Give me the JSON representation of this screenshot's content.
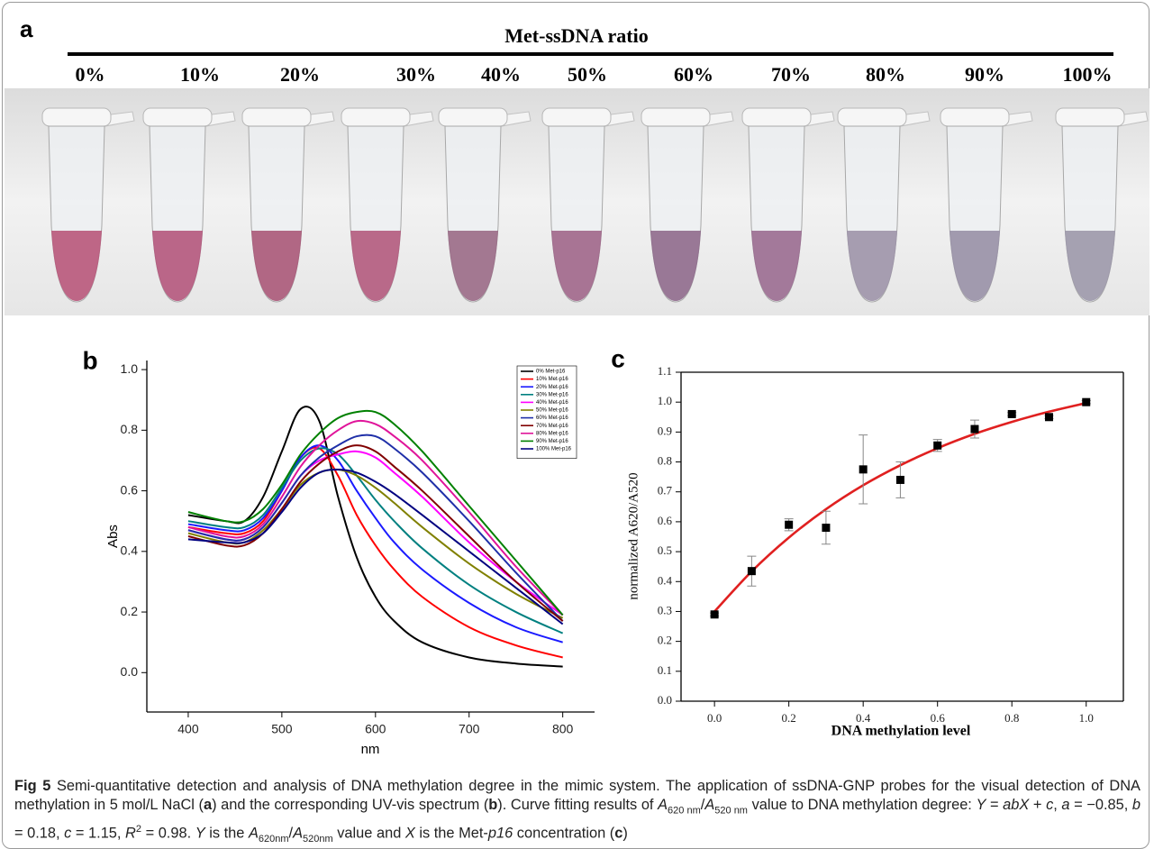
{
  "panel_a": {
    "label": "a",
    "title": "Met-ssDNA ratio",
    "ratios": [
      "0%",
      "10%",
      "20%",
      "30%",
      "40%",
      "50%",
      "60%",
      "70%",
      "80%",
      "90%",
      "100%"
    ]
  },
  "chart_data": [
    {
      "type": "line",
      "panel_label": "b",
      "x_label": "nm",
      "y_label": "Abs",
      "x": [
        400,
        440,
        460,
        480,
        500,
        520,
        540,
        560,
        580,
        600,
        620,
        650,
        700,
        750,
        800
      ],
      "series": [
        {
          "name": "0% Met-p16",
          "color": "#000000",
          "values": [
            0.52,
            0.5,
            0.5,
            0.58,
            0.73,
            0.87,
            0.83,
            0.58,
            0.38,
            0.25,
            0.17,
            0.1,
            0.05,
            0.03,
            0.02
          ]
        },
        {
          "name": "10% Met-p16",
          "color": "#ff0000",
          "values": [
            0.48,
            0.46,
            0.46,
            0.5,
            0.6,
            0.71,
            0.74,
            0.65,
            0.52,
            0.42,
            0.34,
            0.25,
            0.15,
            0.09,
            0.05
          ]
        },
        {
          "name": "20% Met-p16",
          "color": "#1a1aff",
          "values": [
            0.49,
            0.47,
            0.47,
            0.51,
            0.6,
            0.71,
            0.75,
            0.7,
            0.6,
            0.51,
            0.43,
            0.34,
            0.23,
            0.15,
            0.1
          ]
        },
        {
          "name": "30% Met-p16",
          "color": "#008080",
          "values": [
            0.5,
            0.48,
            0.48,
            0.52,
            0.61,
            0.7,
            0.74,
            0.72,
            0.65,
            0.57,
            0.5,
            0.41,
            0.29,
            0.2,
            0.13
          ]
        },
        {
          "name": "40% Met-p16",
          "color": "#ff00ff",
          "values": [
            0.47,
            0.44,
            0.44,
            0.48,
            0.56,
            0.65,
            0.7,
            0.72,
            0.73,
            0.71,
            0.66,
            0.58,
            0.43,
            0.3,
            0.19
          ]
        },
        {
          "name": "50% Met-p16",
          "color": "#808000",
          "values": [
            0.46,
            0.43,
            0.43,
            0.47,
            0.54,
            0.62,
            0.66,
            0.67,
            0.65,
            0.61,
            0.56,
            0.48,
            0.36,
            0.26,
            0.18
          ]
        },
        {
          "name": "60% Met-p16",
          "color": "#1f2fa8",
          "values": [
            0.47,
            0.44,
            0.44,
            0.48,
            0.56,
            0.65,
            0.71,
            0.75,
            0.78,
            0.78,
            0.74,
            0.66,
            0.5,
            0.33,
            0.17
          ]
        },
        {
          "name": "70% Met-p16",
          "color": "#800000",
          "values": [
            0.45,
            0.42,
            0.42,
            0.46,
            0.54,
            0.63,
            0.69,
            0.73,
            0.75,
            0.73,
            0.68,
            0.6,
            0.45,
            0.3,
            0.17
          ]
        },
        {
          "name": "80% Met-p16",
          "color": "#e0149a",
          "values": [
            0.48,
            0.45,
            0.45,
            0.49,
            0.58,
            0.68,
            0.75,
            0.8,
            0.83,
            0.82,
            0.78,
            0.7,
            0.53,
            0.35,
            0.19
          ]
        },
        {
          "name": "90% Met-p16",
          "color": "#008000",
          "values": [
            0.53,
            0.5,
            0.5,
            0.54,
            0.62,
            0.72,
            0.79,
            0.84,
            0.86,
            0.86,
            0.82,
            0.73,
            0.55,
            0.37,
            0.19
          ]
        },
        {
          "name": "100% Met-p16",
          "color": "#000080",
          "values": [
            0.44,
            0.43,
            0.43,
            0.46,
            0.53,
            0.61,
            0.66,
            0.67,
            0.66,
            0.63,
            0.59,
            0.52,
            0.4,
            0.28,
            0.16
          ]
        }
      ],
      "xlim": [
        355.8,
        834
      ],
      "ylim": [
        -0.13,
        1.03
      ],
      "xticks": [
        400,
        500,
        600,
        700,
        800
      ],
      "yticks": [
        {
          "value": 0,
          "label": "0.0"
        },
        0.2,
        0.4,
        0.6,
        0.8,
        {
          "value": 1,
          "label": "1.0"
        }
      ],
      "legend": "upper right",
      "box": false
    },
    {
      "type": "scatter",
      "panel_label": "c",
      "x_label": "DNA methylation level",
      "y_label": "normalized A620/A520",
      "x": [
        0,
        0.1,
        0.2,
        0.3,
        0.4,
        0.5,
        0.6,
        0.7,
        0.8,
        0.9,
        1.0
      ],
      "values": [
        0.29,
        0.435,
        0.59,
        0.58,
        0.775,
        0.74,
        0.855,
        0.91,
        0.96,
        0.95,
        1.0
      ],
      "errors": [
        0.005,
        0.05,
        0.02,
        0.055,
        0.115,
        0.06,
        0.02,
        0.03,
        0.005,
        0.005,
        0.005
      ],
      "color": "#000000",
      "fit": {
        "color": "#e02020",
        "values": [
          0.3,
          0.434,
          0.547,
          0.642,
          0.722,
          0.789,
          0.846,
          0.894,
          0.934,
          0.968,
          0.997
        ]
      },
      "xlim": [
        -0.09,
        1.1
      ],
      "ylim": [
        0,
        1.1
      ],
      "xticks": [
        {
          "value": 0,
          "label": "0.0"
        },
        0.2,
        0.4,
        0.6,
        0.8,
        {
          "value": 1,
          "label": "1.0"
        }
      ],
      "yticks": [
        {
          "value": 0,
          "label": "0.0"
        },
        0.1,
        0.2,
        0.3,
        0.4,
        0.5,
        0.6,
        0.7,
        0.8,
        0.9,
        {
          "value": 1,
          "label": "1.0"
        },
        1.1
      ],
      "box": true
    }
  ],
  "caption": {
    "label": "Fig 5",
    "runs": [
      " Semi-quantitative detection and analysis of DNA methylation degree in the mimic system. The application of ssDNA-GNP probes for the visual detection of DNA methylation in 5 mol/L NaCl (",
      "a",
      ") and the corresponding UV-vis spectrum (",
      "b",
      "). Curve fitting results of ",
      "A",
      "620 nm",
      "/",
      "A",
      "520 nm",
      " value to DNA methylation degree: ",
      "Y",
      " = ",
      "abX",
      " + ",
      "c",
      ", ",
      "a",
      " = −0.85, ",
      "b",
      " = 0.18, ",
      "c",
      " = 1.15, ",
      "R",
      "2",
      " = 0.98. ",
      "Y",
      " is the ",
      "A",
      "620nm",
      "/",
      "A",
      "520nm",
      " value and ",
      "X",
      " is the Met-",
      "p16",
      " concentration (",
      "c",
      ")"
    ]
  }
}
